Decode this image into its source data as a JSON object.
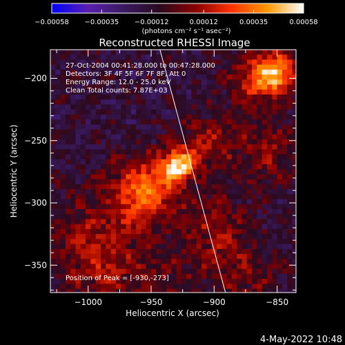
{
  "chart_data": {
    "type": "heatmap",
    "title": "Reconstructed RHESSI Image",
    "xlabel": "Heliocentric X (arcsec)",
    "ylabel": "Heliocentric Y (arcsec)",
    "xlim": [
      -1030,
      -835
    ],
    "ylim": [
      -372,
      -177
    ],
    "x_ticks": [
      -1000,
      -950,
      -900,
      -850
    ],
    "x_tick_labels": [
      "−1000",
      "−950",
      "−900",
      "−850"
    ],
    "y_ticks": [
      -200,
      -250,
      -300,
      -350
    ],
    "y_tick_labels": [
      "−200",
      "−250",
      "−300",
      "−350"
    ],
    "colorbar": {
      "range": [
        -0.00058,
        0.00058
      ],
      "tick_values": [
        -0.00058,
        -0.00035,
        -0.00012,
        0.00012,
        0.00035,
        0.00058
      ],
      "tick_labels": [
        "−0.00058",
        "−0.00035",
        "−0.00012",
        "0.00012",
        "0.00035",
        "0.00058"
      ],
      "units_label": "(photons cm⁻² s⁻¹ asec⁻²)",
      "colors": [
        "#0000ff",
        "#5a1fb0",
        "#3a1a60",
        "#2a0a20",
        "#8a0000",
        "#ff3300",
        "#ff9900",
        "#ffffff"
      ]
    },
    "annotations": [
      "27-Oct-2004 00:41:28.000 to 00:47:28.000",
      "Detectors: 3F 4F 5F 6F 7F 8F, Att 0",
      "Energy Range: 12.0 - 25.0 keV",
      "Clean     Total counts: 7.87E+03"
    ],
    "peak_label": "Position of Peak = [-930,-273]",
    "peak": [
      -930,
      -273
    ],
    "limb_line": [
      [
        -943,
        -177
      ],
      [
        -891,
        -372
      ]
    ],
    "sources": [
      {
        "x": -928,
        "y": -270,
        "sigma": 9,
        "amp": 0.00058
      },
      {
        "x": -950,
        "y": -285,
        "sigma": 16,
        "amp": 0.00032
      },
      {
        "x": -965,
        "y": -300,
        "sigma": 20,
        "amp": 0.00022
      },
      {
        "x": -905,
        "y": -250,
        "sigma": 16,
        "amp": 0.00022
      },
      {
        "x": -900,
        "y": -320,
        "sigma": 20,
        "amp": 0.00018
      },
      {
        "x": -865,
        "y": -200,
        "sigma": 16,
        "amp": 0.00034
      },
      {
        "x": -850,
        "y": -195,
        "sigma": 10,
        "amp": 0.00042
      },
      {
        "x": -855,
        "y": -260,
        "sigma": 16,
        "amp": 0.0002
      },
      {
        "x": -1005,
        "y": -330,
        "sigma": 22,
        "amp": 0.00016
      },
      {
        "x": -985,
        "y": -355,
        "sigma": 20,
        "amp": 0.00018
      },
      {
        "x": -880,
        "y": -360,
        "sigma": 22,
        "amp": 0.00014
      },
      {
        "x": -940,
        "y": -360,
        "sigma": 16,
        "amp": 0.00012
      }
    ],
    "background_level": -0.00013
  },
  "footer": {
    "timestamp": "4-May-2022 10:48"
  }
}
